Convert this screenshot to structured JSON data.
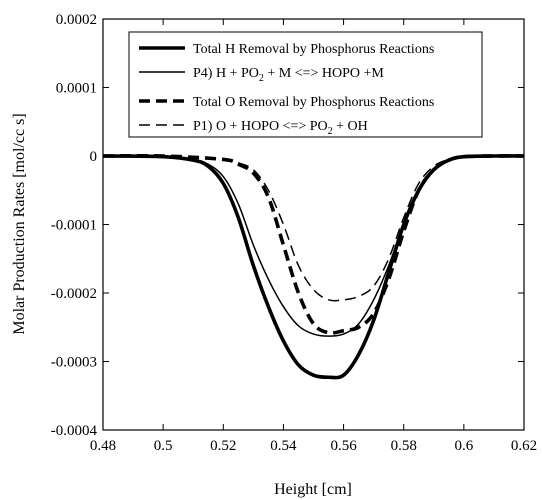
{
  "chart_data": {
    "type": "line",
    "xlabel": "Height  [cm]",
    "ylabel": "Molar Production Rates  [mol/cc s]",
    "xlim": [
      0.48,
      0.62
    ],
    "ylim": [
      -0.0004,
      0.0002
    ],
    "x_ticks": [
      0.48,
      0.5,
      0.52,
      0.54,
      0.56,
      0.58,
      0.6,
      0.62
    ],
    "x_tick_labels": [
      "0.48",
      "0.5",
      "0.52",
      "0.54",
      "0.56",
      "0.58",
      "0.6",
      "0.62"
    ],
    "y_ticks": [
      0.0002,
      0.0001,
      0,
      -0.0001,
      -0.0002,
      -0.0003,
      -0.0004
    ],
    "y_tick_labels": [
      "0.0002",
      "0.0001",
      "0",
      "-0.0001",
      "-0.0002",
      "-0.0003",
      "-0.0004"
    ],
    "grid": false,
    "legend_position": "top",
    "series": [
      {
        "name": "Total H Removal by Phosphorus Reactions",
        "legend_main": "Total H Removal by Phosphorus Reactions",
        "legend_sub": "",
        "legend_tail": "",
        "style": "thick-solid",
        "x": [
          0.48,
          0.5,
          0.51,
          0.515,
          0.52,
          0.525,
          0.53,
          0.535,
          0.54,
          0.545,
          0.55,
          0.555,
          0.56,
          0.565,
          0.57,
          0.575,
          0.58,
          0.585,
          0.59,
          0.595,
          0.6,
          0.61,
          0.62
        ],
        "y": [
          0,
          -1e-06,
          -6e-06,
          -1.5e-05,
          -4e-05,
          -9e-05,
          -0.00016,
          -0.00022,
          -0.00027,
          -0.000305,
          -0.00032,
          -0.000323,
          -0.00032,
          -0.00029,
          -0.00024,
          -0.00017,
          -0.0001,
          -5e-05,
          -2e-05,
          -6e-06,
          -1e-06,
          0,
          0
        ]
      },
      {
        "name": "P4)  H + PO2 + M <=> HOPO +M",
        "legend_main": "P4)  H + PO",
        "legend_sub": "2",
        "legend_tail": " + M <=> HOPO +M",
        "style": "thin-solid",
        "x": [
          0.48,
          0.5,
          0.51,
          0.515,
          0.52,
          0.525,
          0.53,
          0.535,
          0.54,
          0.545,
          0.55,
          0.555,
          0.56,
          0.565,
          0.57,
          0.575,
          0.58,
          0.585,
          0.59,
          0.595,
          0.6,
          0.61,
          0.62
        ],
        "y": [
          0,
          -1e-06,
          -5e-06,
          -1.2e-05,
          -3e-05,
          -7e-05,
          -0.00013,
          -0.00018,
          -0.00022,
          -0.000248,
          -0.00026,
          -0.000263,
          -0.00026,
          -0.000245,
          -0.00021,
          -0.00016,
          -0.0001,
          -5e-05,
          -2e-05,
          -6e-06,
          -1e-06,
          0,
          0
        ]
      },
      {
        "name": "Total O Removal by Phosphorus Reactions",
        "legend_main": "Total O Removal by Phosphorus Reactions",
        "legend_sub": "",
        "legend_tail": "",
        "style": "thick-dashed",
        "x": [
          0.48,
          0.5,
          0.52,
          0.525,
          0.53,
          0.535,
          0.54,
          0.545,
          0.55,
          0.555,
          0.56,
          0.565,
          0.57,
          0.575,
          0.58,
          0.585,
          0.59,
          0.595,
          0.6,
          0.61,
          0.62
        ],
        "y": [
          0,
          0,
          -5e-06,
          -1.2e-05,
          -2.5e-05,
          -6e-05,
          -0.00013,
          -0.0002,
          -0.000245,
          -0.000258,
          -0.000255,
          -0.00025,
          -0.00023,
          -0.00018,
          -0.00011,
          -5e-05,
          -2e-05,
          -6e-06,
          -1e-06,
          0,
          0
        ]
      },
      {
        "name": "P1)  O + HOPO <=> PO2 + OH",
        "legend_main": "P1)  O + HOPO <=> PO",
        "legend_sub": "2",
        "legend_tail": " + OH",
        "style": "thin-dashed",
        "x": [
          0.48,
          0.5,
          0.52,
          0.525,
          0.53,
          0.535,
          0.54,
          0.545,
          0.55,
          0.555,
          0.56,
          0.565,
          0.57,
          0.575,
          0.58,
          0.585,
          0.59,
          0.595,
          0.6,
          0.61,
          0.62
        ],
        "y": [
          0,
          0,
          -4e-06,
          -1e-05,
          -2e-05,
          -5e-05,
          -0.0001,
          -0.00016,
          -0.000195,
          -0.00021,
          -0.00021,
          -0.000205,
          -0.00019,
          -0.00015,
          -9e-05,
          -4e-05,
          -1.5e-05,
          -5e-06,
          -1e-06,
          0,
          0
        ]
      }
    ]
  }
}
